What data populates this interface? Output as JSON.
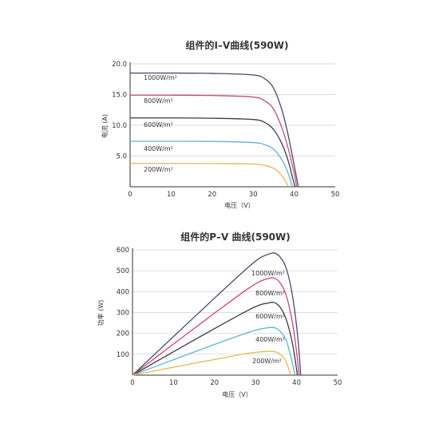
{
  "chart_data": [
    {
      "type": "line",
      "title": "组件的I–V曲线(590W)",
      "xlabel": "电压（V）",
      "ylabel": "电流 (A)",
      "xlim": [
        0,
        50
      ],
      "ylim": [
        0,
        20
      ],
      "xticks": [
        0,
        10,
        20,
        30,
        40,
        50
      ],
      "xtick_labels": [
        "0",
        "10",
        "20",
        "30",
        "40",
        "50"
      ],
      "yticks": [
        5,
        10,
        15,
        20
      ],
      "ytick_labels": [
        "5.0",
        "10.0",
        "15.0",
        "20.0"
      ],
      "grid": true,
      "series": [
        {
          "name": "1000W/m²",
          "color": "#4a4a6a",
          "values": [
            [
              0,
              18.5
            ],
            [
              10,
              18.5
            ],
            [
              20,
              18.45
            ],
            [
              30,
              18.2
            ],
            [
              33,
              17.5
            ],
            [
              35,
              16.0
            ],
            [
              37,
              12.5
            ],
            [
              38.5,
              8.5
            ],
            [
              40,
              3.5
            ],
            [
              41,
              0
            ]
          ]
        },
        {
          "name": "800W/m²",
          "color": "#c0507a",
          "values": [
            [
              0,
              14.9
            ],
            [
              10,
              14.9
            ],
            [
              20,
              14.85
            ],
            [
              30,
              14.6
            ],
            [
              33,
              13.9
            ],
            [
              35,
              12.6
            ],
            [
              37,
              9.6
            ],
            [
              38.5,
              6.3
            ],
            [
              40,
              2.2
            ],
            [
              40.6,
              0
            ]
          ]
        },
        {
          "name": "600W/m²",
          "color": "#3a3a4a",
          "values": [
            [
              0,
              11.2
            ],
            [
              10,
              11.2
            ],
            [
              20,
              11.15
            ],
            [
              30,
              10.95
            ],
            [
              33,
              10.4
            ],
            [
              35,
              9.3
            ],
            [
              37,
              7.0
            ],
            [
              38.5,
              4.3
            ],
            [
              39.6,
              1.5
            ],
            [
              40.2,
              0
            ]
          ]
        },
        {
          "name": "400W/m²",
          "color": "#5fb3d3",
          "values": [
            [
              0,
              7.4
            ],
            [
              10,
              7.4
            ],
            [
              20,
              7.38
            ],
            [
              30,
              7.2
            ],
            [
              33,
              6.8
            ],
            [
              35,
              6.1
            ],
            [
              37,
              4.4
            ],
            [
              38.4,
              2.4
            ],
            [
              39.3,
              0.6
            ],
            [
              39.6,
              0
            ]
          ]
        },
        {
          "name": "200W/m²",
          "color": "#e8b850",
          "values": [
            [
              0,
              3.8
            ],
            [
              10,
              3.8
            ],
            [
              20,
              3.78
            ],
            [
              30,
              3.7
            ],
            [
              33,
              3.45
            ],
            [
              35,
              3.0
            ],
            [
              36.5,
              2.2
            ],
            [
              37.8,
              1.0
            ],
            [
              38.6,
              0
            ]
          ]
        }
      ]
    },
    {
      "type": "line",
      "title": "组件的P–V 曲线(590W)",
      "xlabel": "电压（V）",
      "ylabel": "功率 (W)",
      "xlim": [
        0,
        50
      ],
      "ylim": [
        0,
        600
      ],
      "xticks": [
        0,
        10,
        20,
        30,
        40,
        50
      ],
      "xtick_labels": [
        "0",
        "10",
        "20",
        "30",
        "40",
        "50"
      ],
      "yticks": [
        100,
        200,
        300,
        400,
        500,
        600
      ],
      "ytick_labels": [
        "100",
        "200",
        "300",
        "400",
        "500",
        "600"
      ],
      "grid": true,
      "series": [
        {
          "name": "1000W/m²",
          "color": "#4a4a6a",
          "values": [
            [
              0,
              0
            ],
            [
              10,
              185
            ],
            [
              20,
              369
            ],
            [
              28,
              513
            ],
            [
              31,
              560
            ],
            [
              33,
              578
            ],
            [
              34.5,
              585
            ],
            [
              36,
              565
            ],
            [
              37.5,
              510
            ],
            [
              39,
              380
            ],
            [
              40.3,
              180
            ],
            [
              41,
              0
            ]
          ]
        },
        {
          "name": "800W/m²",
          "color": "#d0407a",
          "values": [
            [
              0,
              0
            ],
            [
              10,
              149
            ],
            [
              20,
              297
            ],
            [
              28,
              412
            ],
            [
              31,
              448
            ],
            [
              33,
              462
            ],
            [
              34.5,
              465
            ],
            [
              36,
              442
            ],
            [
              37.5,
              380
            ],
            [
              39,
              250
            ],
            [
              40,
              110
            ],
            [
              40.6,
              0
            ]
          ]
        },
        {
          "name": "600W/m²",
          "color": "#3a3a4a",
          "values": [
            [
              0,
              0
            ],
            [
              10,
              112
            ],
            [
              20,
              223
            ],
            [
              28,
              309
            ],
            [
              31,
              336
            ],
            [
              33,
              345
            ],
            [
              34.5,
              348
            ],
            [
              36,
              325
            ],
            [
              37.5,
              265
            ],
            [
              39,
              150
            ],
            [
              40.2,
              0
            ]
          ]
        },
        {
          "name": "400W/m²",
          "color": "#5fb3d3",
          "values": [
            [
              0,
              0
            ],
            [
              10,
              74
            ],
            [
              20,
              147
            ],
            [
              28,
              203
            ],
            [
              31,
              220
            ],
            [
              33,
              227
            ],
            [
              34.5,
              228
            ],
            [
              36,
              210
            ],
            [
              37.5,
              165
            ],
            [
              38.7,
              80
            ],
            [
              39.6,
              0
            ]
          ]
        },
        {
          "name": "200W/m²",
          "color": "#e8b850",
          "values": [
            [
              0,
              0
            ],
            [
              10,
              38
            ],
            [
              20,
              75
            ],
            [
              28,
              104
            ],
            [
              31,
              111
            ],
            [
              33,
              114
            ],
            [
              34.5,
              113
            ],
            [
              36,
              100
            ],
            [
              37.3,
              70
            ],
            [
              38.6,
              0
            ]
          ]
        }
      ]
    }
  ]
}
